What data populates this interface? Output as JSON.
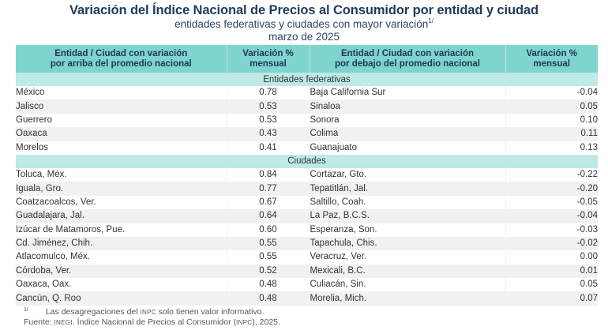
{
  "title": "Variación del Índice Nacional de Precios al Consumidor por entidad y ciudad",
  "subtitle": "entidades federativas y ciudades con mayor variación",
  "subtitle_note_marker": "1/",
  "period": "marzo de 2025",
  "table": {
    "headers": {
      "above_name_line1": "Entidad / Ciudad con variación",
      "above_name_line2": "por arriba del promedio nacional",
      "above_value_line1": "Variación %",
      "above_value_line2": "mensual",
      "below_name_line1": "Entidad / Ciudad con variación",
      "below_name_line2": "por debajo del promedio nacional",
      "below_value_line1": "Variación %",
      "below_value_line2": "mensual"
    },
    "sections": [
      {
        "label": "Entidades federativas",
        "rows": [
          {
            "above_name": "México",
            "above_value": "0.78",
            "below_name": "Baja California Sur",
            "below_value": "-0.04"
          },
          {
            "above_name": "Jalisco",
            "above_value": "0.53",
            "below_name": "Sinaloa",
            "below_value": "0.05"
          },
          {
            "above_name": "Guerrero",
            "above_value": "0.53",
            "below_name": "Sonora",
            "below_value": "0.10"
          },
          {
            "above_name": "Oaxaca",
            "above_value": "0.43",
            "below_name": "Colima",
            "below_value": "0.11"
          },
          {
            "above_name": "Morelos",
            "above_value": "0.41",
            "below_name": "Guanajuato",
            "below_value": "0.13"
          }
        ]
      },
      {
        "label": "Ciudades",
        "rows": [
          {
            "above_name": "Toluca, Méx.",
            "above_value": "0.84",
            "below_name": "Cortazar, Gto.",
            "below_value": "-0.22"
          },
          {
            "above_name": "Iguala, Gro.",
            "above_value": "0.77",
            "below_name": "Tepatitlán, Jal.",
            "below_value": "-0.20"
          },
          {
            "above_name": "Coatzacoalcos, Ver.",
            "above_value": "0.67",
            "below_name": "Saltillo, Coah.",
            "below_value": "-0.05"
          },
          {
            "above_name": "Guadalajara, Jal.",
            "above_value": "0.64",
            "below_name": "La Paz, B.C.S.",
            "below_value": "-0.04"
          },
          {
            "above_name": "Izúcar de Matamoros, Pue.",
            "above_value": "0.60",
            "below_name": "Esperanza, Son.",
            "below_value": "-0.03"
          },
          {
            "above_name": "Cd. Jiménez, Chih.",
            "above_value": "0.55",
            "below_name": "Tapachula, Chis.",
            "below_value": "-0.02"
          },
          {
            "above_name": "Atlacomulco, Méx.",
            "above_value": "0.55",
            "below_name": "Veracruz, Ver.",
            "below_value": "0.00"
          },
          {
            "above_name": "Córdoba, Ver.",
            "above_value": "0.52",
            "below_name": "Mexicali, B.C.",
            "below_value": "0.01"
          },
          {
            "above_name": "Oaxaca, Oax.",
            "above_value": "0.48",
            "below_name": "Culiacán, Sin.",
            "below_value": "0.05"
          },
          {
            "above_name": "Cancún, Q. Roo",
            "above_value": "0.48",
            "below_name": "Morelia, Mich.",
            "below_value": "0.07"
          }
        ]
      }
    ]
  },
  "footnotes": {
    "note_marker": "1/",
    "note_text_pre": "Las desagregaciones del ",
    "note_abbrev": "INPC",
    "note_text_post": " solo tienen valor informativo.",
    "source_label": "Fuente: ",
    "source_org": "INEGI",
    "source_text_pre": ". Índice Nacional de Precios al Consumidor (",
    "source_abbrev": "INPC",
    "source_text_post": "), 2025."
  },
  "colors": {
    "title": "#1f3b5c",
    "header_bg": "#80d4cf",
    "section_bg": "#bdeae6",
    "alt_row_bg": "#f1f1f1"
  }
}
